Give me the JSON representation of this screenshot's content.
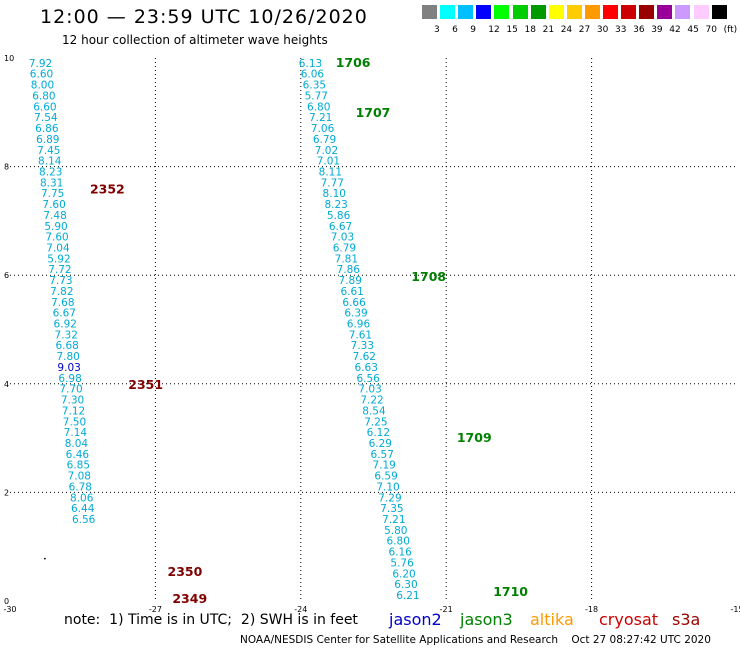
{
  "header": {
    "title": "12:00 — 23:59 UTC 10/26/2020",
    "subtitle": "12 hour collection of altimeter wave heights"
  },
  "color_scale": {
    "colors": [
      "#808080",
      "#00ffff",
      "#00bfff",
      "#0000ff",
      "#00ff00",
      "#00cc00",
      "#009900",
      "#ffff00",
      "#ffcc00",
      "#ff9900",
      "#ff0000",
      "#cc0000",
      "#990000",
      "#990099",
      "#cc99ff",
      "#ffccff",
      "#000000"
    ],
    "labels": [
      "3",
      "6",
      "9",
      "12",
      "15",
      "18",
      "21",
      "24",
      "27",
      "30",
      "33",
      "36",
      "39",
      "42",
      "45",
      "70",
      "(ft)"
    ]
  },
  "footer": {
    "note": "note:  1) Time is in UTC;  2) SWH is in feet",
    "legend": [
      {
        "label": "jason2",
        "color": "#0000cc"
      },
      {
        "label": "jason3",
        "color": "#008000"
      },
      {
        "label": "altika",
        "color": "#ff9900"
      },
      {
        "label": "cryosat",
        "color": "#cc0000"
      },
      {
        "label": "s3a",
        "color": "#990000"
      }
    ],
    "credit": "NOAA/NESDIS Center for Satellite Applications and Research",
    "timestamp": "Oct 27 08:27:42 UTC 2020"
  },
  "chart_data": {
    "type": "scatter",
    "xlim": [
      -30,
      -15
    ],
    "ylim": [
      0,
      10
    ],
    "xticks": [
      "-30",
      "-27",
      "-24",
      "-21",
      "-18",
      "-15"
    ],
    "yticks": [
      "0",
      "2",
      "4",
      "6",
      "8",
      "10"
    ],
    "grid": true,
    "series": [
      {
        "name": "cryosat",
        "label_color": "#00aad4",
        "time_color": "#800000",
        "x": [
          -29.57,
          -29.55,
          -29.53,
          -29.5,
          -29.48,
          -29.46,
          -29.44,
          -29.42,
          -29.4,
          -29.38,
          -29.36,
          -29.34,
          -29.32,
          -29.29,
          -29.27,
          -29.25,
          -29.23,
          -29.21,
          -29.19,
          -29.17,
          -29.15,
          -29.13,
          -29.11,
          -29.08,
          -29.06,
          -29.04,
          -29.02,
          -29.0,
          -28.98,
          -28.96,
          -28.94,
          -28.91,
          -28.89,
          -28.87,
          -28.85,
          -28.83,
          -28.81,
          -28.79,
          -28.77,
          -28.75,
          -28.72,
          -28.7,
          -28.68,
          -28.66,
          -28.64,
          -28.62,
          -28.6,
          -28.58,
          -28.56,
          -28.54,
          -28.51
        ],
        "y": [
          9.91,
          9.71,
          9.51,
          9.31,
          9.11,
          8.91,
          8.71,
          8.51,
          8.31,
          8.11,
          7.91,
          7.71,
          7.51,
          7.31,
          7.11,
          6.91,
          6.71,
          6.51,
          6.31,
          6.11,
          5.91,
          5.71,
          5.51,
          5.31,
          5.11,
          4.91,
          4.71,
          4.51,
          4.31,
          4.11,
          3.91,
          3.71,
          3.51,
          3.31,
          3.11,
          2.91,
          2.71,
          2.51,
          2.31,
          2.11,
          1.91,
          1.71,
          1.51,
          1.31,
          1.11,
          0.91,
          0.71,
          0.51,
          0.31,
          0.11,
          -0.09
        ],
        "labels": [
          "7.92",
          "6.60",
          "8.00",
          "6.80",
          "6.60",
          "7.54",
          "6.86",
          "6.89",
          "7.45",
          "8.14",
          "8.23",
          "8.31",
          "7.75",
          "7.60",
          "7.48",
          "5.90",
          "7.60",
          "7.04",
          "5.92",
          "7.72",
          "7.73",
          "7.82",
          "7.68",
          "6.67",
          "6.92",
          "7.32",
          "6.68",
          "7.80",
          "9.03",
          "6.98",
          "7.70",
          "7.30",
          "7.12",
          "7.50",
          "7.14",
          "8.04",
          "6.46",
          "6.85",
          "7.08",
          "6.78",
          "8.06",
          "6.44",
          "6.56"
        ],
        "label_colors": {
          "28": "#0000cc"
        },
        "times": [
          {
            "label": "2352",
            "x": -28.35,
            "y": 7.58
          },
          {
            "label": "2351",
            "x": -27.56,
            "y": 3.98
          },
          {
            "label": "2350",
            "x": -26.75,
            "y": 0.53
          },
          {
            "label": "2349",
            "x": -26.65,
            "y": 0.04
          }
        ]
      },
      {
        "name": "jason3",
        "label_color": "#00aad4",
        "time_color": "#008000",
        "x": [
          -24.0,
          -23.96,
          -23.92,
          -23.88,
          -23.83,
          -23.79,
          -23.75,
          -23.71,
          -23.67,
          -23.63,
          -23.59,
          -23.55,
          -23.51,
          -23.47,
          -23.42,
          -23.38,
          -23.34,
          -23.3,
          -23.26,
          -23.22,
          -23.18,
          -23.14,
          -23.1,
          -23.06,
          -23.01,
          -22.97,
          -22.93,
          -22.89,
          -22.85,
          -22.81,
          -22.77,
          -22.73,
          -22.69,
          -22.65,
          -22.6,
          -22.56,
          -22.52,
          -22.48,
          -22.44,
          -22.4,
          -22.36,
          -22.32,
          -22.28,
          -22.24,
          -22.19,
          -22.15,
          -22.11,
          -22.07,
          -22.03,
          -21.99,
          -21.95
        ],
        "y": [
          9.91,
          9.71,
          9.51,
          9.31,
          9.11,
          8.91,
          8.71,
          8.51,
          8.31,
          8.11,
          7.91,
          7.71,
          7.51,
          7.31,
          7.11,
          6.91,
          6.71,
          6.51,
          6.31,
          6.11,
          5.91,
          5.71,
          5.51,
          5.31,
          5.11,
          4.91,
          4.71,
          4.51,
          4.31,
          4.11,
          3.91,
          3.71,
          3.51,
          3.31,
          3.11,
          2.91,
          2.71,
          2.51,
          2.31,
          2.11,
          1.91,
          1.71,
          1.51,
          1.31,
          1.11,
          0.91,
          0.71,
          0.51,
          0.31,
          0.11,
          -0.09
        ],
        "labels": [
          "6.13",
          "6.06",
          "6.35",
          "5.77",
          "6.80",
          "7.21",
          "7.06",
          "6.79",
          "7.02",
          "7.01",
          "8.11",
          "7.77",
          "8.10",
          "8.23",
          "5.86",
          "6.67",
          "7.03",
          "6.79",
          "7.81",
          "7.86",
          "7.89",
          "6.61",
          "6.66",
          "6.39",
          "6.96",
          "7.61",
          "7.33",
          "7.62",
          "6.63",
          "6.56",
          "7.03",
          "7.22",
          "8.54",
          "7.25",
          "6.12",
          "6.29",
          "6.57",
          "7.19",
          "6.59",
          "7.10",
          "7.29",
          "7.35",
          "7.21",
          "5.80",
          "6.80",
          "6.16",
          "5.76",
          "6.20",
          "6.30",
          "6.21"
        ],
        "label_colors": {},
        "times": [
          {
            "label": "1706",
            "x": -23.28,
            "y": 9.91
          },
          {
            "label": "1707",
            "x": -22.87,
            "y": 8.99
          },
          {
            "label": "1708",
            "x": -21.72,
            "y": 5.97
          },
          {
            "label": "1709",
            "x": -20.78,
            "y": 3.0
          },
          {
            "label": "1710",
            "x": -20.03,
            "y": 0.17
          }
        ]
      }
    ],
    "marks": [
      {
        "x": -29.28,
        "y": 0.78
      }
    ]
  }
}
